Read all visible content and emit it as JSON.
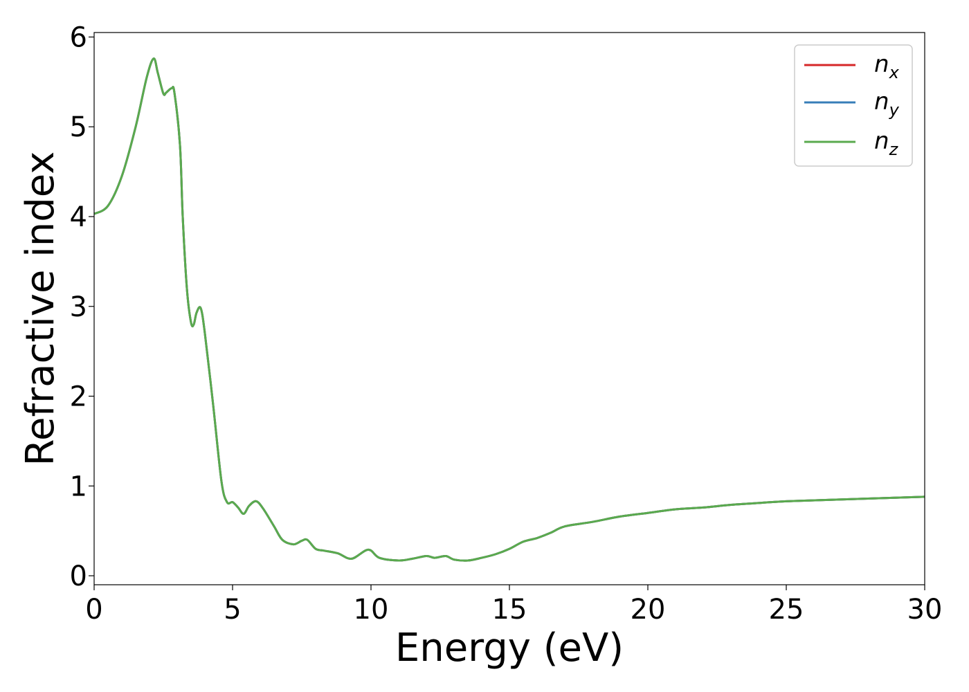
{
  "chart_data": {
    "type": "line",
    "xlabel": "Energy (eV)",
    "ylabel": "Refractive index",
    "xlim": [
      0,
      30
    ],
    "ylim": [
      -0.1,
      6.05
    ],
    "xticks": [
      0,
      5,
      10,
      15,
      20,
      25,
      30
    ],
    "yticks": [
      0,
      1,
      2,
      3,
      4,
      5,
      6
    ],
    "grid": false,
    "legend_position": "top-right",
    "series": [
      {
        "name": "n",
        "subscript": "x",
        "color": "#d62728",
        "x": [
          0,
          0.5,
          1.0,
          1.5,
          1.9,
          2.15,
          2.3,
          2.5,
          2.6,
          2.8,
          2.9,
          3.1,
          3.2,
          3.35,
          3.5,
          3.6,
          3.7,
          3.85,
          4.0,
          4.3,
          4.6,
          4.8,
          5.0,
          5.2,
          5.4,
          5.6,
          5.85,
          6.1,
          6.5,
          6.8,
          7.2,
          7.5,
          7.7,
          8.0,
          8.3,
          8.8,
          9.3,
          9.9,
          10.3,
          11.0,
          11.5,
          12.0,
          12.3,
          12.7,
          13.0,
          13.5,
          14.0,
          14.5,
          15.0,
          15.5,
          16.0,
          16.5,
          17.0,
          18.0,
          19.0,
          20.0,
          21.0,
          22.0,
          23.0,
          24.0,
          25.0,
          27.0,
          30.0
        ],
        "y": [
          4.03,
          4.12,
          4.45,
          5.0,
          5.55,
          5.76,
          5.6,
          5.37,
          5.38,
          5.43,
          5.38,
          4.8,
          4.0,
          3.2,
          2.82,
          2.8,
          2.93,
          2.98,
          2.7,
          1.9,
          1.05,
          0.82,
          0.82,
          0.76,
          0.69,
          0.78,
          0.83,
          0.75,
          0.55,
          0.4,
          0.35,
          0.39,
          0.4,
          0.3,
          0.28,
          0.25,
          0.19,
          0.29,
          0.2,
          0.17,
          0.19,
          0.22,
          0.2,
          0.22,
          0.18,
          0.17,
          0.2,
          0.24,
          0.3,
          0.38,
          0.42,
          0.48,
          0.55,
          0.6,
          0.66,
          0.7,
          0.74,
          0.76,
          0.79,
          0.81,
          0.83,
          0.85,
          0.88
        ]
      },
      {
        "name": "n",
        "subscript": "y",
        "color": "#377eb8",
        "x": [
          0,
          0.5,
          1.0,
          1.5,
          1.9,
          2.15,
          2.3,
          2.5,
          2.6,
          2.8,
          2.9,
          3.1,
          3.2,
          3.35,
          3.5,
          3.6,
          3.7,
          3.85,
          4.0,
          4.3,
          4.6,
          4.8,
          5.0,
          5.2,
          5.4,
          5.6,
          5.85,
          6.1,
          6.5,
          6.8,
          7.2,
          7.5,
          7.7,
          8.0,
          8.3,
          8.8,
          9.3,
          9.9,
          10.3,
          11.0,
          11.5,
          12.0,
          12.3,
          12.7,
          13.0,
          13.5,
          14.0,
          14.5,
          15.0,
          15.5,
          16.0,
          16.5,
          17.0,
          18.0,
          19.0,
          20.0,
          21.0,
          22.0,
          23.0,
          24.0,
          25.0,
          27.0,
          30.0
        ],
        "y": [
          4.03,
          4.12,
          4.45,
          5.0,
          5.55,
          5.76,
          5.6,
          5.37,
          5.38,
          5.43,
          5.38,
          4.8,
          4.0,
          3.2,
          2.82,
          2.8,
          2.93,
          2.98,
          2.7,
          1.9,
          1.05,
          0.82,
          0.82,
          0.76,
          0.69,
          0.78,
          0.83,
          0.75,
          0.55,
          0.4,
          0.35,
          0.39,
          0.4,
          0.3,
          0.28,
          0.25,
          0.19,
          0.29,
          0.2,
          0.17,
          0.19,
          0.22,
          0.2,
          0.22,
          0.18,
          0.17,
          0.2,
          0.24,
          0.3,
          0.38,
          0.42,
          0.48,
          0.55,
          0.6,
          0.66,
          0.7,
          0.74,
          0.76,
          0.79,
          0.81,
          0.83,
          0.85,
          0.88
        ]
      },
      {
        "name": "n",
        "subscript": "z",
        "color": "#5aaa4e",
        "x": [
          0,
          0.5,
          1.0,
          1.5,
          1.9,
          2.15,
          2.3,
          2.5,
          2.6,
          2.8,
          2.9,
          3.1,
          3.2,
          3.35,
          3.5,
          3.6,
          3.7,
          3.85,
          4.0,
          4.3,
          4.6,
          4.8,
          5.0,
          5.2,
          5.4,
          5.6,
          5.85,
          6.1,
          6.5,
          6.8,
          7.2,
          7.5,
          7.7,
          8.0,
          8.3,
          8.8,
          9.3,
          9.9,
          10.3,
          11.0,
          11.5,
          12.0,
          12.3,
          12.7,
          13.0,
          13.5,
          14.0,
          14.5,
          15.0,
          15.5,
          16.0,
          16.5,
          17.0,
          18.0,
          19.0,
          20.0,
          21.0,
          22.0,
          23.0,
          24.0,
          25.0,
          27.0,
          30.0
        ],
        "y": [
          4.03,
          4.12,
          4.45,
          5.0,
          5.55,
          5.76,
          5.6,
          5.37,
          5.38,
          5.43,
          5.38,
          4.8,
          4.0,
          3.2,
          2.82,
          2.8,
          2.93,
          2.98,
          2.7,
          1.9,
          1.05,
          0.82,
          0.82,
          0.76,
          0.69,
          0.78,
          0.83,
          0.75,
          0.55,
          0.4,
          0.35,
          0.39,
          0.4,
          0.3,
          0.28,
          0.25,
          0.19,
          0.29,
          0.2,
          0.17,
          0.19,
          0.22,
          0.2,
          0.22,
          0.18,
          0.17,
          0.2,
          0.24,
          0.3,
          0.38,
          0.42,
          0.48,
          0.55,
          0.6,
          0.66,
          0.7,
          0.74,
          0.76,
          0.79,
          0.81,
          0.83,
          0.85,
          0.88
        ]
      }
    ]
  }
}
